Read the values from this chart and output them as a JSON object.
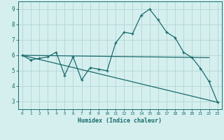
{
  "xlabel": "Humidex (Indice chaleur)",
  "bg_color": "#d5efef",
  "grid_color": "#b8d8d8",
  "line_color": "#1a6b6b",
  "xlim": [
    -0.5,
    23.5
  ],
  "ylim": [
    2.5,
    9.5
  ],
  "yticks": [
    3,
    4,
    5,
    6,
    7,
    8,
    9
  ],
  "xticks": [
    0,
    1,
    2,
    3,
    4,
    5,
    6,
    7,
    8,
    9,
    10,
    11,
    12,
    13,
    14,
    15,
    16,
    17,
    18,
    19,
    20,
    21,
    22,
    23
  ],
  "line1_x": [
    0,
    1,
    2,
    3,
    4,
    5,
    6,
    7,
    8,
    9,
    10,
    11,
    12,
    13,
    14,
    15,
    16,
    17,
    18,
    19,
    20,
    21,
    22,
    23
  ],
  "line1_y": [
    6.0,
    5.7,
    5.8,
    5.9,
    6.2,
    4.7,
    5.9,
    4.4,
    5.2,
    5.1,
    5.0,
    6.8,
    7.5,
    7.4,
    8.6,
    9.0,
    8.3,
    7.5,
    7.15,
    6.2,
    5.85,
    5.15,
    4.3,
    2.95
  ],
  "line2_x": [
    0,
    22
  ],
  "line2_y": [
    6.0,
    5.85
  ],
  "line3_x": [
    0,
    23
  ],
  "line3_y": [
    6.0,
    2.95
  ]
}
